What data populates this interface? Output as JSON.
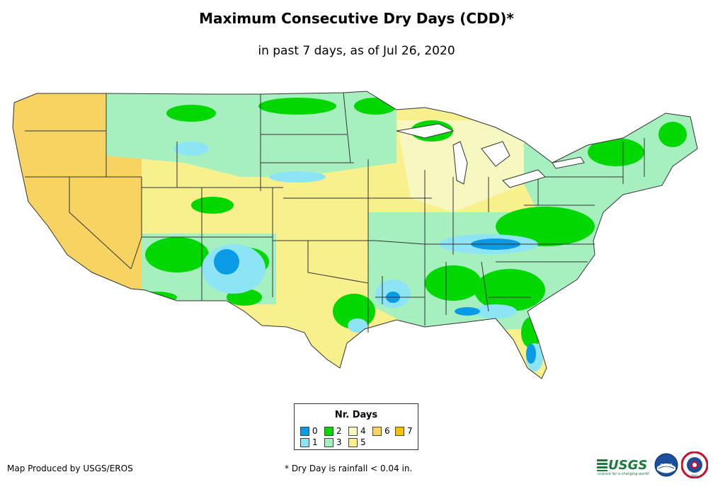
{
  "title": "Maximum Consecutive Dry Days (CDD)*",
  "subtitle": "in past 7 days, as of Jul 26, 2020",
  "legend": {
    "title": "Nr. Days",
    "items": [
      {
        "label": "0",
        "color": "#0a9be6"
      },
      {
        "label": "1",
        "color": "#8ce4f5"
      },
      {
        "label": "2",
        "color": "#00d800"
      },
      {
        "label": "3",
        "color": "#a6f0c0"
      },
      {
        "label": "4",
        "color": "#f7f7c0"
      },
      {
        "label": "5",
        "color": "#f7f08c"
      },
      {
        "label": "6",
        "color": "#f7d462"
      },
      {
        "label": "7",
        "color": "#f5c000"
      }
    ]
  },
  "credit": "Map Produced by USGS/EROS",
  "footnote": "* Dry Day is rainfall < 0.04 in.",
  "logos": {
    "usgs": "USGS",
    "usgs_tagline": "science for a changing world",
    "noaa": "noaa",
    "nws": "NWS"
  }
}
